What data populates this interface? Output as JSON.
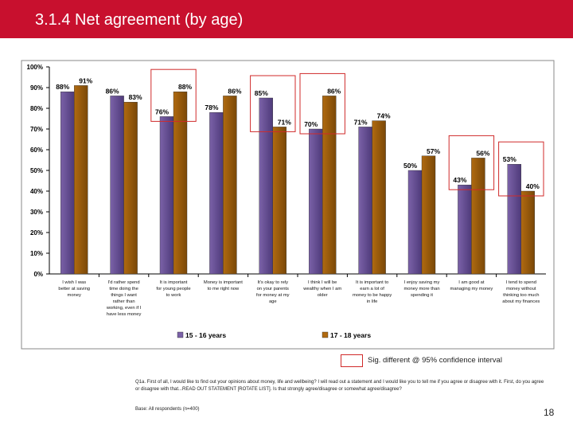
{
  "header": {
    "title": "3.1.4 Net agreement (by age)"
  },
  "colors": {
    "series1": "#7b62a8",
    "series2": "#b06a10",
    "header": "#c8102e",
    "sig_box": "#d02a2a"
  },
  "chart_data": {
    "type": "bar",
    "title": "",
    "xlabel": "",
    "ylabel": "",
    "ylim": [
      0,
      100
    ],
    "yticks": [
      "0%",
      "10%",
      "20%",
      "30%",
      "40%",
      "50%",
      "60%",
      "70%",
      "80%",
      "90%",
      "100%"
    ],
    "categories": [
      "I wish I was better at saving money",
      "I'd rather spend time doing the things I want rather than working, even if I have less money",
      "It is important for young people to work",
      "Money is important to me right now",
      "It's okay to rely on your parents for money at my age",
      "I think I will be wealthy when I am older",
      "It is important to earn a lot of money to be happy in life",
      "I enjoy saving my money more than spending it",
      "I am good at managing my money",
      "I tend to spend money without thinking too much about my finances"
    ],
    "series": [
      {
        "name": "15 - 16 years",
        "values": [
          88,
          86,
          76,
          78,
          85,
          70,
          71,
          50,
          43,
          53
        ],
        "labels": [
          "88%",
          "86%",
          "76%",
          "78%",
          "85%",
          "70%",
          "71%",
          "50%",
          "43%",
          "53%"
        ]
      },
      {
        "name": "17 - 18 years",
        "values": [
          91,
          83,
          88,
          86,
          71,
          86,
          74,
          57,
          56,
          40
        ],
        "labels": [
          "91%",
          "83%",
          "88%",
          "86%",
          "71%",
          "86%",
          "74%",
          "57%",
          "56%",
          "40%"
        ]
      }
    ],
    "significant": [
      2,
      4,
      5,
      8,
      9
    ],
    "legend": "bottom"
  },
  "footer": {
    "sig_legend": "Sig. different @ 95% confidence interval",
    "question": "Q1a. First of all, I would like to find out your opinions about money, life and wellbeing? I will read out a statement and I would like you to tell me if you agree or disagree with it. First, do you agree or disagree with that...READ OUT STATEMENT [ROTATE LIST]. Is that strongly agree/disagree or somewhat agree/disagree?",
    "base": "Base: All respondents (n=400)",
    "page_number": "18"
  }
}
